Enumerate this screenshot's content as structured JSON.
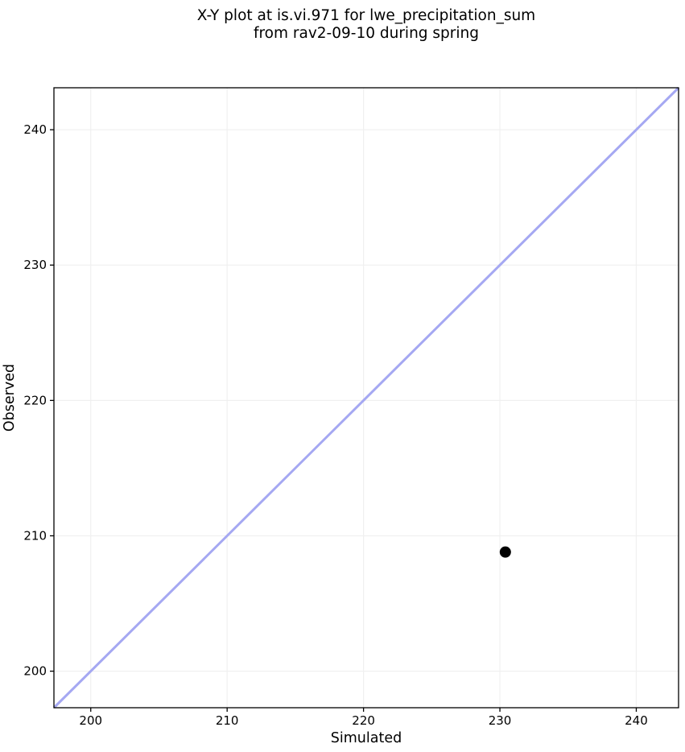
{
  "chart_data": {
    "type": "scatter",
    "title": "X-Y plot at is.vi.971 for lwe_precipitation_sum\nfrom rav2-09-10 during spring",
    "title_lines": [
      "X-Y plot at is.vi.971 for lwe_precipitation_sum",
      "from rav2-09-10 during spring"
    ],
    "xlabel": "Simulated",
    "ylabel": "Observed",
    "xlim": [
      197.3,
      243.1
    ],
    "ylim": [
      197.3,
      243.1
    ],
    "xticks": [
      200,
      210,
      220,
      230,
      240
    ],
    "yticks": [
      200,
      210,
      220,
      230,
      240
    ],
    "grid": true,
    "legend_position": "none",
    "series": [
      {
        "name": "identity-line",
        "type": "line",
        "x": [
          197.3,
          243.1
        ],
        "y": [
          197.3,
          243.1
        ],
        "color": "#a5a8f2",
        "width": 3
      },
      {
        "name": "observations",
        "type": "scatter",
        "points": [
          {
            "x": 230.4,
            "y": 208.8
          }
        ],
        "color": "#000000",
        "marker_radius": 7
      }
    ],
    "colors": {
      "grid": "#f0f0f0",
      "spine": "#000000",
      "text": "#000000",
      "background": "#ffffff"
    }
  }
}
